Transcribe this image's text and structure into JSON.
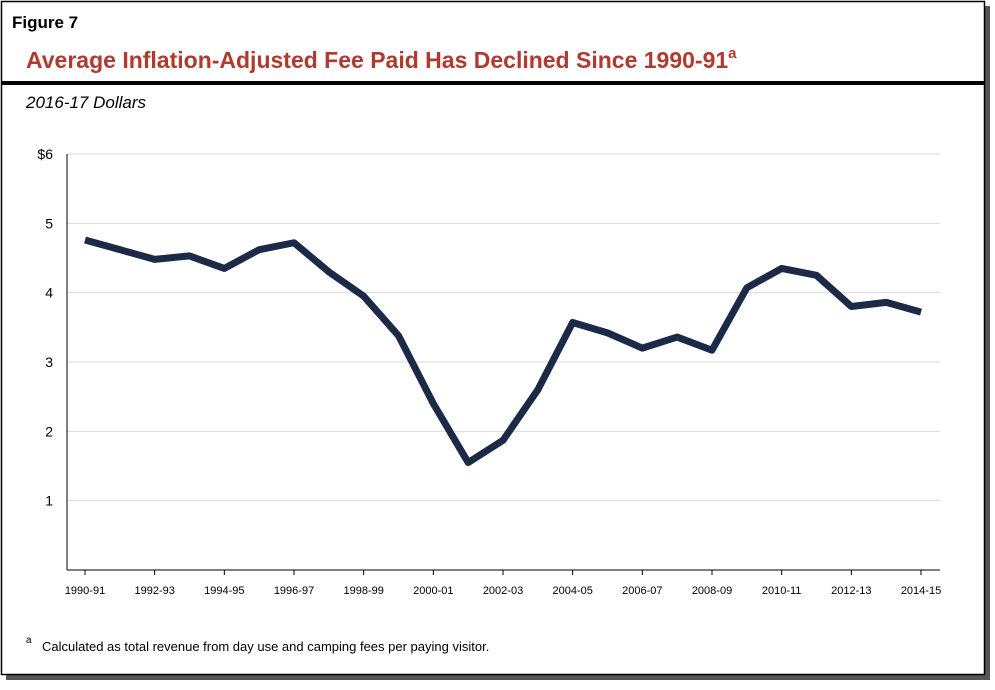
{
  "chart_data": {
    "type": "line",
    "figure_label": "Figure 7",
    "title": "Average Inflation-Adjusted Fee Paid Has Declined Since 1990-91",
    "title_note": "a",
    "subtitle": "2016-17 Dollars",
    "categories": [
      "1990-91",
      null,
      "1992-93",
      null,
      "1994-95",
      null,
      "1996-97",
      null,
      "1998-99",
      null,
      "2000-01",
      null,
      "2002-03",
      null,
      "2004-05",
      null,
      "2006-07",
      null,
      "2008-09",
      null,
      "2010-11",
      null,
      "2012-13",
      null,
      "2014-15"
    ],
    "series": [
      {
        "name": "Average fee paid",
        "color": "#1b2a47",
        "values": [
          4.76,
          4.62,
          4.48,
          4.53,
          4.35,
          4.62,
          4.72,
          4.3,
          3.95,
          3.38,
          2.4,
          1.55,
          1.87,
          2.6,
          3.57,
          3.42,
          3.2,
          3.36,
          3.17,
          4.07,
          4.35,
          4.25,
          3.8,
          3.86,
          3.72
        ]
      }
    ],
    "ylim": [
      0,
      6
    ],
    "yticks": [
      1,
      2,
      3,
      4,
      5,
      {
        "value": 6,
        "label": "$6"
      }
    ],
    "grid": true,
    "footnote": {
      "marker": "a",
      "text": "Calculated as total revenue from day use and camping fees per paying visitor."
    }
  }
}
